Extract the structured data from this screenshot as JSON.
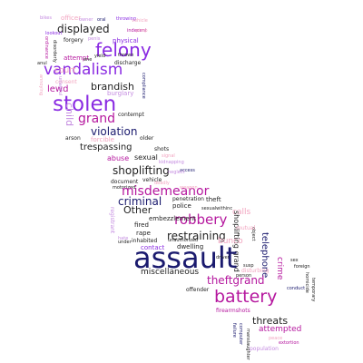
{
  "colors": {
    "navy": "#1a1a6e",
    "black": "#222222",
    "purple": "#8a2be2",
    "magenta": "#b5179e",
    "pink": "#e75480",
    "lilac": "#c48be0",
    "lightpink": "#f2a5c0"
  },
  "words": [
    {
      "text": "bikes"
    },
    {
      "text": "officer"
    },
    {
      "text": "oral"
    },
    {
      "text": "throwing"
    },
    {
      "text": "vehicle"
    },
    {
      "text": "displayed"
    },
    {
      "text": "physical"
    },
    {
      "text": "indecent"
    },
    {
      "text": "forgery"
    },
    {
      "text": "penis"
    },
    {
      "text": "felony"
    },
    {
      "text": "yield"
    },
    {
      "text": "discharge"
    },
    {
      "text": "attempt"
    },
    {
      "text": "vandalism"
    },
    {
      "text": "consent"
    },
    {
      "text": "court"
    },
    {
      "text": "brandish"
    },
    {
      "text": "lewd"
    },
    {
      "text": "burglary"
    },
    {
      "text": "compliance"
    },
    {
      "text": "stolen"
    },
    {
      "text": "grand"
    },
    {
      "text": "contempt"
    },
    {
      "text": "violation"
    },
    {
      "text": "child"
    },
    {
      "text": "trespassing"
    },
    {
      "text": "arson"
    },
    {
      "text": "forcible"
    },
    {
      "text": "older"
    },
    {
      "text": "shots"
    },
    {
      "text": "abuse"
    },
    {
      "text": "sexual"
    },
    {
      "text": "signal"
    },
    {
      "text": "kidnapping"
    },
    {
      "text": "shoplifting"
    },
    {
      "text": "access"
    },
    {
      "text": "document"
    },
    {
      "text": "vehicle"
    },
    {
      "text": "motorized"
    },
    {
      "text": "misdemeanor"
    },
    {
      "text": "penetration"
    },
    {
      "text": "criminal"
    },
    {
      "text": "theft"
    },
    {
      "text": "Other"
    },
    {
      "text": "police"
    },
    {
      "text": "sexualwithinc"
    },
    {
      "text": "robbery"
    },
    {
      "text": "calls"
    },
    {
      "text": "restraining"
    },
    {
      "text": "embezzlement"
    },
    {
      "text": "registrant"
    },
    {
      "text": "rape"
    },
    {
      "text": "fired"
    },
    {
      "text": "inhabited"
    },
    {
      "text": "shoplifting grand"
    },
    {
      "text": "unauthorized"
    },
    {
      "text": "dwelling"
    },
    {
      "text": "bunco"
    },
    {
      "text": "contact"
    },
    {
      "text": "assault"
    },
    {
      "text": "miscellaneous"
    },
    {
      "text": "telephone"
    },
    {
      "text": "crime"
    },
    {
      "text": "theftgrand"
    },
    {
      "text": "offender"
    },
    {
      "text": "battery"
    },
    {
      "text": "disturbing"
    },
    {
      "text": "firearmshots"
    },
    {
      "text": "threats"
    },
    {
      "text": "attempted"
    },
    {
      "text": "population"
    },
    {
      "text": "sex"
    },
    {
      "text": "foreign"
    },
    {
      "text": "homicide"
    },
    {
      "text": "temporary"
    },
    {
      "text": "failure"
    },
    {
      "text": "computer"
    },
    {
      "text": "manslaughter"
    },
    {
      "text": "susp"
    },
    {
      "text": "object"
    },
    {
      "text": "mutual"
    },
    {
      "text": "peace"
    },
    {
      "text": "annoying"
    },
    {
      "text": "ordinance"
    },
    {
      "text": "disorderly"
    },
    {
      "text": "unlawful"
    },
    {
      "text": "anul"
    },
    {
      "text": "one"
    },
    {
      "text": "neglect"
    },
    {
      "text": "conduct"
    },
    {
      "text": "hate"
    },
    {
      "text": "deadly"
    },
    {
      "text": "weapon"
    },
    {
      "text": "under"
    },
    {
      "text": "owner"
    },
    {
      "text": "lookout"
    },
    {
      "text": "thrown"
    },
    {
      "text": "driver"
    },
    {
      "text": "pimp"
    },
    {
      "text": "extortion"
    },
    {
      "text": "person"
    }
  ]
}
